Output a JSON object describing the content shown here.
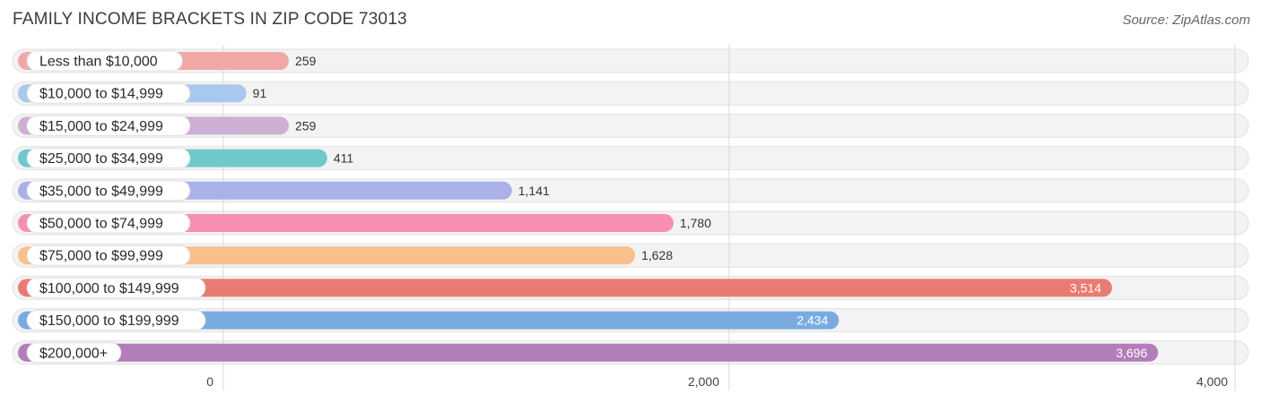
{
  "header": {
    "title": "FAMILY INCOME BRACKETS IN ZIP CODE 73013",
    "source": "Source: ZipAtlas.com"
  },
  "chart_data": {
    "type": "bar",
    "orientation": "horizontal",
    "title": "FAMILY INCOME BRACKETS IN ZIP CODE 73013",
    "categories": [
      "Less than $10,000",
      "$10,000 to $14,999",
      "$15,000 to $24,999",
      "$25,000 to $34,999",
      "$35,000 to $49,999",
      "$50,000 to $74,999",
      "$75,000 to $99,999",
      "$100,000 to $149,999",
      "$150,000 to $199,999",
      "$200,000+"
    ],
    "values": [
      259,
      91,
      259,
      411,
      1141,
      1780,
      1628,
      3514,
      2434,
      3696
    ],
    "value_labels": [
      "259",
      "91",
      "259",
      "411",
      "1,141",
      "1,780",
      "1,628",
      "3,514",
      "2,434",
      "3,696"
    ],
    "colors": [
      "#f2a7a7",
      "#a9c8ee",
      "#cfaed4",
      "#6fc9cb",
      "#aab0e8",
      "#f68fb0",
      "#f9c08c",
      "#ea7b72",
      "#79abe1",
      "#b27db8"
    ],
    "xlim": [
      0,
      4000
    ],
    "xticks": [
      0,
      2000,
      4000
    ],
    "xtick_labels": [
      "0",
      "2,000",
      "4,000"
    ],
    "grid": true
  }
}
